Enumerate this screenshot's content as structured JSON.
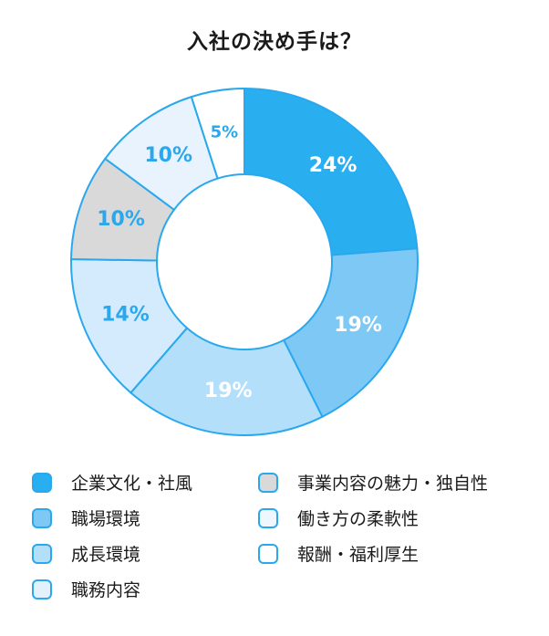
{
  "chart_data": {
    "type": "pie",
    "title": "入社の決め手は？",
    "series": [
      {
        "label": "企業文化・社風",
        "value": 24,
        "display": "24%",
        "color": "#29aef0",
        "text_color": "#ffffff"
      },
      {
        "label": "職場環境",
        "value": 19,
        "display": "19%",
        "color": "#7ec8f6",
        "text_color": "#ffffff"
      },
      {
        "label": "成長環境",
        "value": 19,
        "display": "19%",
        "color": "#b3dffb",
        "text_color": "#ffffff"
      },
      {
        "label": "職務内容",
        "value": 14,
        "display": "14%",
        "color": "#d4eafd",
        "text_color": "#2aa8ee"
      },
      {
        "label": "事業内容の魅力・独自性",
        "value": 10,
        "display": "10%",
        "color": "#d9d9d9",
        "text_color": "#2aa8ee"
      },
      {
        "label": "働き方の柔軟性",
        "value": 10,
        "display": "10%",
        "color": "#e9f3fd",
        "text_color": "#2aa8ee"
      },
      {
        "label": "報酬・福利厚生",
        "value": 5,
        "display": "5%",
        "color": "#ffffff",
        "text_color": "#2aa8ee"
      }
    ],
    "hole": "donut",
    "legend_position": "bottom"
  },
  "legend": {
    "items": [
      {
        "label": "企業文化・社風",
        "fill": "#29aef0"
      },
      {
        "label": "事業内容の魅力・独自性",
        "fill": "#d9d9d9"
      },
      {
        "label": "職場環境",
        "fill": "#7ec8f6"
      },
      {
        "label": "働き方の柔軟性",
        "fill": "#eef6fe"
      },
      {
        "label": "成長環境",
        "fill": "#b3dffb"
      },
      {
        "label": "報酬・福利厚生",
        "fill": "#ffffff"
      },
      {
        "label": "職務内容",
        "fill": "#e3f1fd"
      }
    ]
  }
}
